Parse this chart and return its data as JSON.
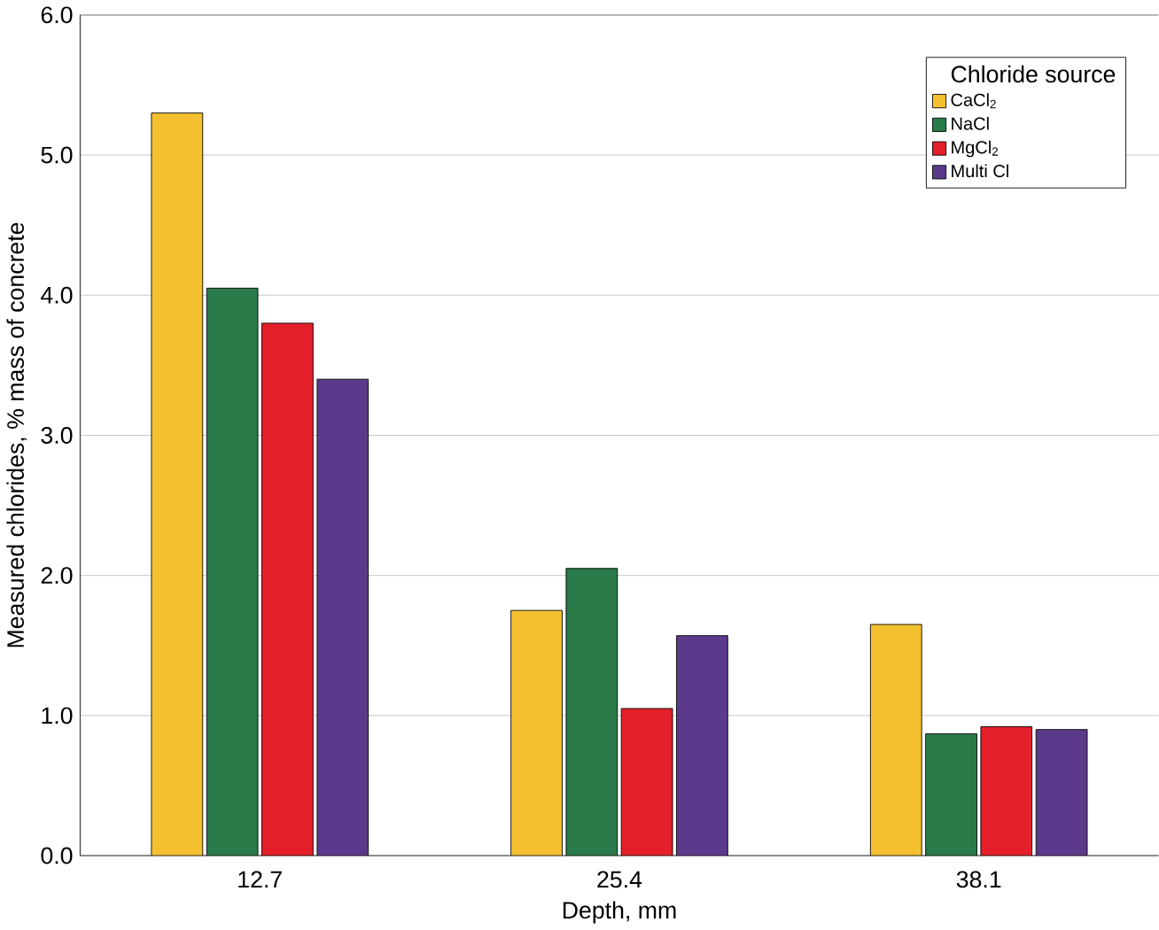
{
  "chart_data": {
    "type": "bar",
    "xlabel": "Depth, mm",
    "ylabel": "Measured chlorides, % mass of concrete",
    "legend_title": "Chloride source",
    "categories": [
      "12.7",
      "25.4",
      "38.1"
    ],
    "series": [
      {
        "name": "CaCl$_{2}$",
        "color": "#f5c02f",
        "values": [
          5.3,
          1.75,
          1.65
        ]
      },
      {
        "name": "NaCl",
        "color": "#2a7a4a",
        "values": [
          4.05,
          2.05,
          0.87
        ]
      },
      {
        "name": "MgCl$_{2}$",
        "color": "#e3202a",
        "values": [
          3.8,
          1.05,
          0.92
        ]
      },
      {
        "name": "Multi Cl",
        "color": "#5b3a8c",
        "values": [
          3.4,
          1.57,
          0.9
        ]
      }
    ],
    "ylim": [
      0,
      6
    ],
    "yticks": [
      {
        "value": 0,
        "label": "0.0"
      },
      {
        "value": 1,
        "label": "1.0"
      },
      {
        "value": 2,
        "label": "2.0"
      },
      {
        "value": 3,
        "label": "3.0"
      },
      {
        "value": 4,
        "label": "4.0"
      },
      {
        "value": 5,
        "label": "5.0"
      },
      {
        "value": 6,
        "label": "6.0"
      }
    ],
    "grid": "y",
    "legend": "top right"
  }
}
